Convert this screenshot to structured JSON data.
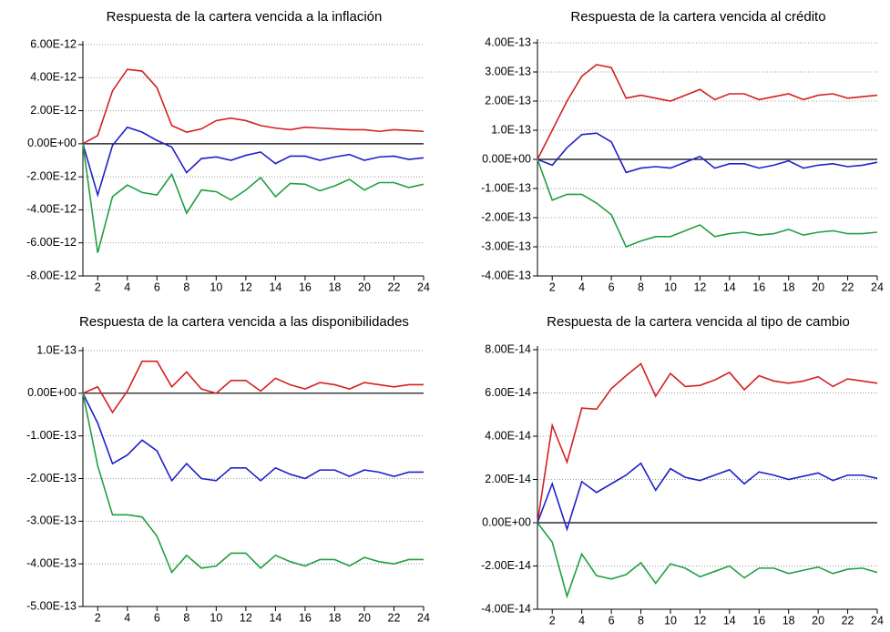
{
  "chart_data": [
    {
      "type": "line",
      "title": "Respuesta de la cartera vencida a la inflación",
      "x": [
        1,
        2,
        3,
        4,
        5,
        6,
        7,
        8,
        9,
        10,
        11,
        12,
        13,
        14,
        15,
        16,
        17,
        18,
        19,
        20,
        21,
        22,
        23,
        24
      ],
      "xlim": [
        1,
        24
      ],
      "xticks": [
        2,
        4,
        6,
        8,
        10,
        12,
        14,
        16,
        18,
        20,
        22,
        24
      ],
      "ylim": [
        -8e-12,
        6e-12
      ],
      "yticks": [
        {
          "value": -8e-12,
          "label": "-8.00E-12"
        },
        {
          "value": -6e-12,
          "label": "-6.00E-12"
        },
        {
          "value": -4e-12,
          "label": "-4.00E-12"
        },
        {
          "value": -2e-12,
          "label": "-2.00E-12"
        },
        {
          "value": 0,
          "label": "0.00E+00"
        },
        {
          "value": 2e-12,
          "label": "2.00E-12"
        },
        {
          "value": 4e-12,
          "label": "4.00E-12"
        },
        {
          "value": 6e-12,
          "label": "6.00E-12"
        }
      ],
      "grid": true,
      "series": [
        {
          "color": "#d42020",
          "values": [
            0,
            5e-13,
            3.2e-12,
            4.5e-12,
            4.4e-12,
            3.4e-12,
            1.1e-12,
            7e-13,
            9e-13,
            1.4e-12,
            1.55e-12,
            1.4e-12,
            1.1e-12,
            9.5e-13,
            8.5e-13,
            1e-12,
            9.5e-13,
            9e-13,
            8.5e-13,
            8.5e-13,
            7.5e-13,
            8.5e-13,
            8e-13,
            7.5e-13
          ]
        },
        {
          "color": "#2020c8",
          "values": [
            0,
            -3.1e-12,
            -1e-13,
            1e-12,
            7e-13,
            2e-13,
            -2e-13,
            -1.75e-12,
            -9e-13,
            -8e-13,
            -1e-12,
            -7e-13,
            -5e-13,
            -1.2e-12,
            -7.5e-13,
            -7.5e-13,
            -1e-12,
            -8e-13,
            -6.5e-13,
            -1e-12,
            -8e-13,
            -7.5e-13,
            -9.5e-13,
            -8.5e-13
          ]
        },
        {
          "color": "#20a040",
          "values": [
            0,
            -6.6e-12,
            -3.2e-12,
            -2.5e-12,
            -2.95e-12,
            -3.1e-12,
            -1.85e-12,
            -4.2e-12,
            -2.8e-12,
            -2.9e-12,
            -3.4e-12,
            -2.8e-12,
            -2.05e-12,
            -3.2e-12,
            -2.4e-12,
            -2.45e-12,
            -2.85e-12,
            -2.55e-12,
            -2.15e-12,
            -2.8e-12,
            -2.35e-12,
            -2.35e-12,
            -2.65e-12,
            -2.45e-12
          ]
        }
      ]
    },
    {
      "type": "line",
      "title": "Respuesta de la cartera vencida al crédito",
      "x": [
        1,
        2,
        3,
        4,
        5,
        6,
        7,
        8,
        9,
        10,
        11,
        12,
        13,
        14,
        15,
        16,
        17,
        18,
        19,
        20,
        21,
        22,
        23,
        24
      ],
      "xlim": [
        1,
        24
      ],
      "xticks": [
        2,
        4,
        6,
        8,
        10,
        12,
        14,
        16,
        18,
        20,
        22,
        24
      ],
      "ylim": [
        -4e-13,
        4e-13
      ],
      "yticks": [
        {
          "value": -4e-13,
          "label": "-4.00E-13"
        },
        {
          "value": -3e-13,
          "label": "-3.00E-13"
        },
        {
          "value": -2e-13,
          "label": "-2.00E-13"
        },
        {
          "value": -1e-13,
          "label": "-1.00E-13"
        },
        {
          "value": 0,
          "label": "0.00E+00"
        },
        {
          "value": 1e-13,
          "label": "1.0E-13"
        },
        {
          "value": 2e-13,
          "label": "2.00E-13"
        },
        {
          "value": 3e-13,
          "label": "3.00E-13"
        },
        {
          "value": 4e-13,
          "label": "4.00E-13"
        }
      ],
      "grid": true,
      "series": [
        {
          "color": "#d42020",
          "values": [
            0,
            1e-13,
            2e-13,
            2.85e-13,
            3.25e-13,
            3.15e-13,
            2.1e-13,
            2.2e-13,
            2.1e-13,
            2e-13,
            2.2e-13,
            2.4e-13,
            2.05e-13,
            2.25e-13,
            2.25e-13,
            2.05e-13,
            2.15e-13,
            2.25e-13,
            2.05e-13,
            2.2e-13,
            2.25e-13,
            2.1e-13,
            2.15e-13,
            2.2e-13
          ]
        },
        {
          "color": "#2020c8",
          "values": [
            0,
            -2e-14,
            4e-14,
            8.5e-14,
            9e-14,
            6e-14,
            -4.5e-14,
            -3e-14,
            -2.5e-14,
            -3e-14,
            -1e-14,
            1e-14,
            -3e-14,
            -1.5e-14,
            -1.5e-14,
            -3e-14,
            -2e-14,
            -5e-15,
            -3e-14,
            -2e-14,
            -1.5e-14,
            -2.5e-14,
            -2e-14,
            -1e-14
          ]
        },
        {
          "color": "#20a040",
          "values": [
            0,
            -1.4e-13,
            -1.2e-13,
            -1.2e-13,
            -1.5e-13,
            -1.9e-13,
            -3e-13,
            -2.8e-13,
            -2.65e-13,
            -2.65e-13,
            -2.45e-13,
            -2.25e-13,
            -2.65e-13,
            -2.55e-13,
            -2.5e-13,
            -2.6e-13,
            -2.55e-13,
            -2.4e-13,
            -2.6e-13,
            -2.5e-13,
            -2.45e-13,
            -2.55e-13,
            -2.55e-13,
            -2.5e-13
          ]
        }
      ]
    },
    {
      "type": "line",
      "title": "Respuesta de la cartera vencida a las disponibilidades",
      "x": [
        1,
        2,
        3,
        4,
        5,
        6,
        7,
        8,
        9,
        10,
        11,
        12,
        13,
        14,
        15,
        16,
        17,
        18,
        19,
        20,
        21,
        22,
        23,
        24
      ],
      "xlim": [
        1,
        24
      ],
      "xticks": [
        2,
        4,
        6,
        8,
        10,
        12,
        14,
        16,
        18,
        20,
        22,
        24
      ],
      "ylim": [
        -5e-13,
        1e-13
      ],
      "yticks": [
        {
          "value": -5e-13,
          "label": "-5.00E-13"
        },
        {
          "value": -4e-13,
          "label": "-4.00E-13"
        },
        {
          "value": -3e-13,
          "label": "-3.00E-13"
        },
        {
          "value": -2e-13,
          "label": "-2.00E-13"
        },
        {
          "value": -1e-13,
          "label": "-1.00E-13"
        },
        {
          "value": 0,
          "label": "0.00E+00"
        },
        {
          "value": 1e-13,
          "label": "1.0E-13"
        }
      ],
      "grid": true,
      "series": [
        {
          "color": "#d42020",
          "values": [
            0,
            1.5e-14,
            -4.5e-14,
            5e-15,
            7.5e-14,
            7.5e-14,
            1.5e-14,
            5e-14,
            1e-14,
            0,
            3e-14,
            3e-14,
            5e-15,
            3.5e-14,
            2e-14,
            1e-14,
            2.5e-14,
            2e-14,
            1e-14,
            2.5e-14,
            2e-14,
            1.5e-14,
            2e-14,
            2e-14
          ]
        },
        {
          "color": "#2020c8",
          "values": [
            0,
            -7e-14,
            -1.65e-13,
            -1.45e-13,
            -1.1e-13,
            -1.35e-13,
            -2.05e-13,
            -1.65e-13,
            -2e-13,
            -2.05e-13,
            -1.75e-13,
            -1.75e-13,
            -2.05e-13,
            -1.75e-13,
            -1.9e-13,
            -2e-13,
            -1.8e-13,
            -1.8e-13,
            -1.95e-13,
            -1.8e-13,
            -1.85e-13,
            -1.95e-13,
            -1.85e-13,
            -1.85e-13
          ]
        },
        {
          "color": "#20a040",
          "values": [
            0,
            -1.7e-13,
            -2.85e-13,
            -2.85e-13,
            -2.9e-13,
            -3.35e-13,
            -4.2e-13,
            -3.8e-13,
            -4.1e-13,
            -4.05e-13,
            -3.75e-13,
            -3.75e-13,
            -4.1e-13,
            -3.8e-13,
            -3.95e-13,
            -4.05e-13,
            -3.9e-13,
            -3.9e-13,
            -4.05e-13,
            -3.85e-13,
            -3.95e-13,
            -4e-13,
            -3.9e-13,
            -3.9e-13
          ]
        }
      ]
    },
    {
      "type": "line",
      "title": "Respuesta de la cartera vencida al tipo de cambio",
      "x": [
        1,
        2,
        3,
        4,
        5,
        6,
        7,
        8,
        9,
        10,
        11,
        12,
        13,
        14,
        15,
        16,
        17,
        18,
        19,
        20,
        21,
        22,
        23,
        24
      ],
      "xlim": [
        1,
        24
      ],
      "xticks": [
        2,
        4,
        6,
        8,
        10,
        12,
        14,
        16,
        18,
        20,
        22,
        24
      ],
      "ylim": [
        -4e-14,
        8e-14
      ],
      "yticks": [
        {
          "value": -4e-14,
          "label": "-4.00E-14"
        },
        {
          "value": -2e-14,
          "label": "-2.00E-14"
        },
        {
          "value": 0,
          "label": "0.00E+00"
        },
        {
          "value": 2e-14,
          "label": "2.00E-14"
        },
        {
          "value": 4e-14,
          "label": "4.00E-14"
        },
        {
          "value": 6e-14,
          "label": "6.00E-14"
        },
        {
          "value": 8e-14,
          "label": "8.00E-14"
        }
      ],
      "grid": true,
      "series": [
        {
          "color": "#d42020",
          "values": [
            0,
            4.5e-14,
            2.8e-14,
            5.3e-14,
            5.25e-14,
            6.2e-14,
            6.8e-14,
            7.35e-14,
            5.85e-14,
            6.9e-14,
            6.3e-14,
            6.35e-14,
            6.6e-14,
            6.95e-14,
            6.15e-14,
            6.8e-14,
            6.55e-14,
            6.45e-14,
            6.55e-14,
            6.75e-14,
            6.3e-14,
            6.65e-14,
            6.55e-14,
            6.45e-14
          ]
        },
        {
          "color": "#2020c8",
          "values": [
            0,
            1.8e-14,
            -3e-15,
            1.9e-14,
            1.4e-14,
            1.8e-14,
            2.2e-14,
            2.75e-14,
            1.5e-14,
            2.5e-14,
            2.1e-14,
            1.95e-14,
            2.2e-14,
            2.45e-14,
            1.8e-14,
            2.35e-14,
            2.2e-14,
            2e-14,
            2.15e-14,
            2.3e-14,
            1.95e-14,
            2.2e-14,
            2.2e-14,
            2.05e-14
          ]
        },
        {
          "color": "#20a040",
          "values": [
            0,
            -9e-15,
            -3.4e-14,
            -1.45e-14,
            -2.45e-14,
            -2.6e-14,
            -2.4e-14,
            -1.85e-14,
            -2.8e-14,
            -1.9e-14,
            -2.1e-14,
            -2.5e-14,
            -2.25e-14,
            -2e-14,
            -2.55e-14,
            -2.1e-14,
            -2.1e-14,
            -2.35e-14,
            -2.2e-14,
            -2.05e-14,
            -2.35e-14,
            -2.15e-14,
            -2.1e-14,
            -2.3e-14
          ]
        }
      ]
    }
  ]
}
